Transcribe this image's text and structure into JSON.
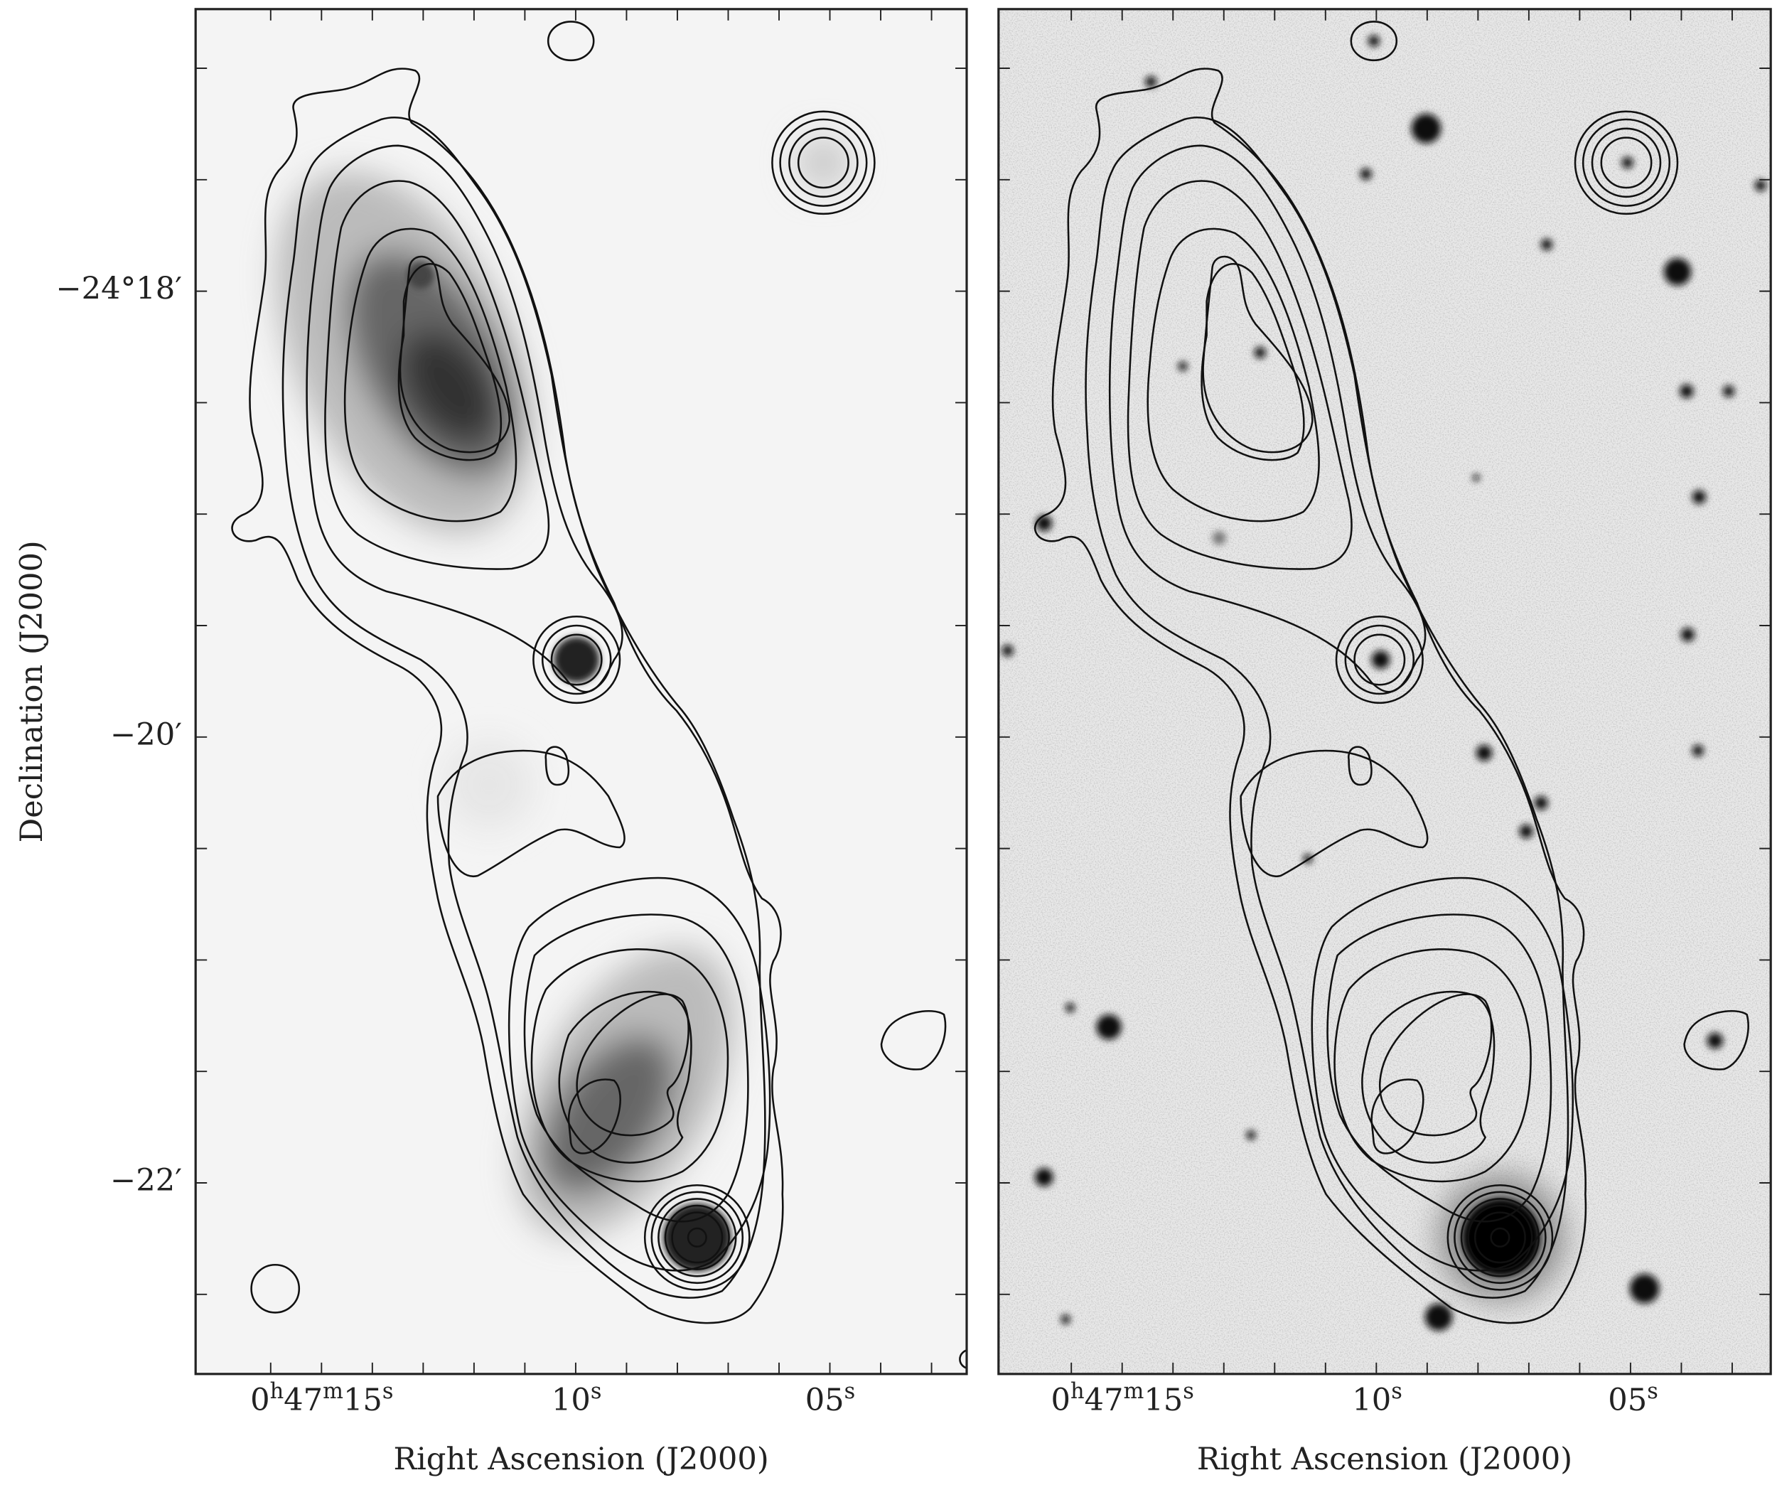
{
  "figure": {
    "ylabel": "Declination (J2000)",
    "yticks": [
      "−24°18′",
      "−20′",
      "−22′"
    ],
    "panels": [
      {
        "xlabel": "Right Ascension (J2000)",
        "xticks": [
          "0h47m15s",
          "10s",
          "05s"
        ]
      },
      {
        "xlabel": "Right Ascension (J2000)",
        "xticks": [
          "0h47m15s",
          "10s",
          "05s"
        ]
      }
    ]
  }
}
